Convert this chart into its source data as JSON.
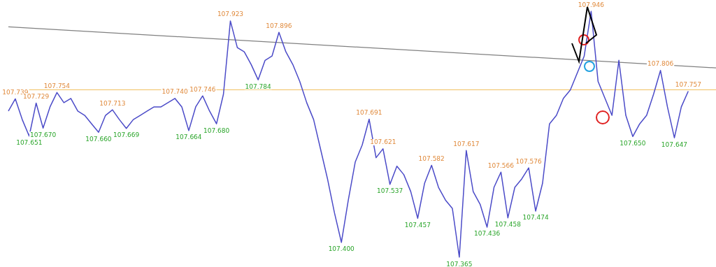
{
  "chart_data": {
    "type": "line",
    "categories": [
      null,
      null,
      null,
      null,
      null,
      null,
      null,
      null,
      null,
      null,
      null,
      null,
      null,
      null,
      null,
      null,
      null,
      null,
      null,
      null,
      null,
      null,
      null,
      null,
      null,
      null,
      null,
      null,
      null,
      null,
      null,
      null,
      null,
      null,
      null,
      null,
      null,
      null,
      null,
      null,
      null,
      null,
      null,
      null,
      null,
      null,
      null,
      null,
      null,
      null,
      null,
      null,
      null,
      null,
      null,
      null,
      null,
      null,
      null,
      null,
      null,
      null,
      null,
      null,
      null,
      null,
      null,
      null,
      null,
      null,
      null,
      null,
      null,
      null,
      null,
      null,
      null,
      null,
      null,
      null,
      null,
      null,
      null,
      null,
      null,
      null,
      null,
      null,
      null,
      null,
      null,
      null,
      null,
      null,
      null,
      null,
      null,
      null,
      null,
      null,
      null,
      null,
      null
    ],
    "series": [
      {
        "color": "#4b4bc8",
        "values": [
          107.71,
          107.739,
          107.69,
          107.651,
          107.729,
          107.67,
          107.72,
          107.754,
          107.73,
          107.74,
          107.71,
          107.7,
          107.68,
          107.66,
          107.7,
          107.713,
          107.69,
          107.669,
          107.69,
          107.7,
          107.71,
          107.72,
          107.72,
          107.73,
          107.74,
          107.72,
          107.664,
          107.72,
          107.746,
          107.71,
          107.68,
          107.75,
          107.923,
          107.86,
          107.85,
          107.82,
          107.784,
          107.83,
          107.84,
          107.896,
          107.85,
          107.82,
          107.78,
          107.73,
          107.69,
          107.62,
          107.55,
          107.47,
          107.4,
          107.5,
          107.59,
          107.63,
          107.691,
          107.6,
          107.621,
          107.537,
          107.58,
          107.56,
          107.52,
          107.457,
          107.54,
          107.582,
          107.53,
          107.5,
          107.48,
          107.365,
          107.617,
          107.52,
          107.49,
          107.436,
          107.53,
          107.566,
          107.458,
          107.53,
          107.55,
          107.576,
          107.474,
          107.54,
          107.68,
          107.7,
          107.74,
          107.76,
          107.8,
          107.84,
          107.946,
          107.78,
          107.74,
          107.7,
          107.83,
          107.7,
          107.65,
          107.68,
          107.7,
          107.75,
          107.806,
          107.72,
          107.647,
          107.72,
          107.757,
          null,
          null,
          null,
          null
        ],
        "value_labels": [
          null,
          "107.739",
          null,
          "107.651",
          "107.729",
          "107.670",
          null,
          "107.754",
          null,
          null,
          null,
          null,
          null,
          "107.660",
          null,
          "107.713",
          null,
          "107.669",
          null,
          null,
          null,
          null,
          null,
          null,
          "107.740",
          null,
          "107.664",
          null,
          "107.746",
          null,
          "107.680",
          null,
          "107.923",
          null,
          null,
          null,
          "107.784",
          null,
          null,
          "107.896",
          null,
          null,
          null,
          null,
          null,
          null,
          null,
          null,
          "107.400",
          null,
          null,
          null,
          "107.691",
          null,
          "107.621",
          "107.537",
          null,
          null,
          null,
          "107.457",
          null,
          "107.582",
          null,
          null,
          null,
          "107.365",
          "107.617",
          null,
          null,
          "107.436",
          null,
          "107.566",
          "107.458",
          null,
          null,
          "107.576",
          "107.474",
          null,
          null,
          null,
          null,
          null,
          null,
          null,
          "107.946",
          null,
          null,
          null,
          null,
          null,
          "107.650",
          null,
          null,
          null,
          "107.806",
          null,
          "107.647",
          null,
          "107.757",
          null,
          null,
          null,
          null
        ]
      },
      {
        "type": "line",
        "color": "#808080",
        "values": [
          107.909,
          null,
          null,
          null,
          null,
          null,
          null,
          null,
          null,
          null,
          null,
          null,
          null,
          null,
          null,
          null,
          null,
          null,
          null,
          null,
          null,
          null,
          null,
          null,
          null,
          null,
          null,
          null,
          null,
          null,
          null,
          null,
          null,
          null,
          null,
          null,
          null,
          null,
          null,
          null,
          null,
          null,
          null,
          null,
          null,
          null,
          null,
          null,
          null,
          null,
          null,
          null,
          null,
          null,
          null,
          null,
          null,
          null,
          null,
          null,
          null,
          null,
          null,
          null,
          null,
          null,
          null,
          null,
          null,
          null,
          null,
          null,
          null,
          null,
          null,
          null,
          null,
          null,
          null,
          null,
          null,
          null,
          null,
          null,
          null,
          null,
          null,
          null,
          null,
          null,
          null,
          null,
          null,
          null,
          null,
          null,
          null,
          null,
          null,
          null,
          null,
          null,
          107.812
        ]
      }
    ],
    "grid": false,
    "ref_lines": [
      {
        "axis": "y",
        "value": 107.76,
        "color": "#f0c060"
      }
    ]
  }
}
